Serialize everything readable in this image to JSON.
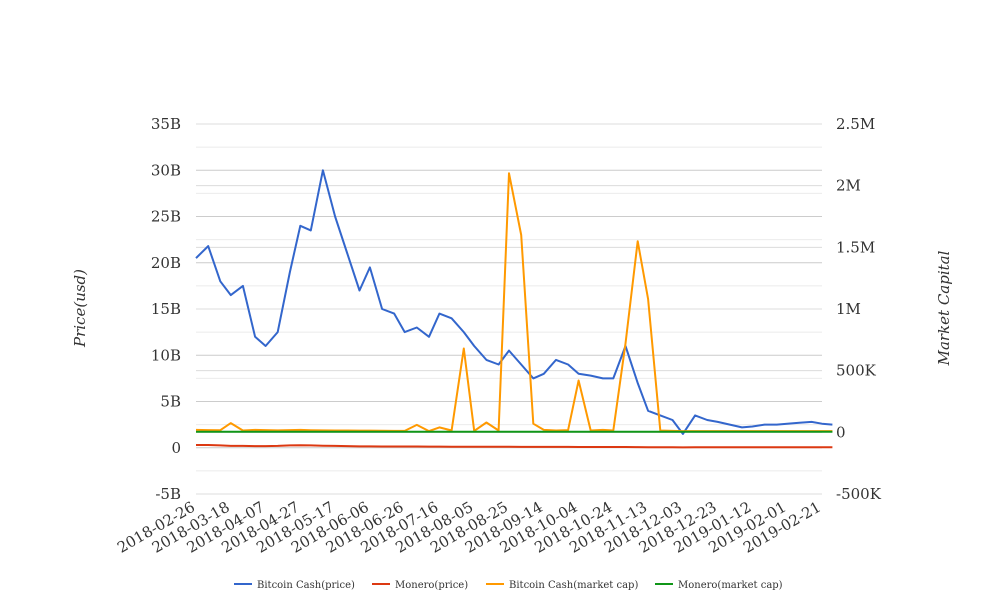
{
  "chart_data": {
    "type": "line",
    "title": "",
    "xlabel": "",
    "ylabel": "Price(usd)",
    "y2label": "Market Capital",
    "grid": true,
    "legend_position": "bottom",
    "x_tick_labels": [
      "2018-02-26",
      "2018-03-18",
      "2018-04-07",
      "2018-04-27",
      "2018-05-17",
      "2018-06-06",
      "2018-06-26",
      "2018-07-16",
      "2018-08-05",
      "2018-08-25",
      "2018-09-14",
      "2018-10-04",
      "2018-10-24",
      "2018-11-13",
      "2018-12-03",
      "2018-12-23",
      "2019-01-12",
      "2019-02-01",
      "2019-02-21"
    ],
    "y_ticks": [
      "35B",
      "30B",
      "25B",
      "20B",
      "15B",
      "10B",
      "5B",
      "0",
      "-5B"
    ],
    "y_tick_values": [
      35,
      30,
      25,
      20,
      15,
      10,
      5,
      0,
      -5
    ],
    "y_unit": "billion",
    "ylim": [
      -5,
      35
    ],
    "y2_ticks": [
      "2.5M",
      "2M",
      "1.5M",
      "1M",
      "500K",
      "0",
      "-500K"
    ],
    "y2_tick_values": [
      2500000,
      2000000,
      1500000,
      1000000,
      500000,
      0,
      -500000
    ],
    "y2lim": [
      -500000,
      2500000
    ],
    "x": [
      "2018-02-26",
      "2018-03-05",
      "2018-03-12",
      "2018-03-18",
      "2018-03-25",
      "2018-04-01",
      "2018-04-07",
      "2018-04-14",
      "2018-04-21",
      "2018-04-27",
      "2018-05-03",
      "2018-05-10",
      "2018-05-17",
      "2018-05-24",
      "2018-05-31",
      "2018-06-06",
      "2018-06-13",
      "2018-06-20",
      "2018-06-26",
      "2018-07-03",
      "2018-07-10",
      "2018-07-16",
      "2018-07-23",
      "2018-07-30",
      "2018-08-05",
      "2018-08-12",
      "2018-08-19",
      "2018-08-25",
      "2018-09-01",
      "2018-09-08",
      "2018-09-14",
      "2018-09-21",
      "2018-09-28",
      "2018-10-04",
      "2018-10-11",
      "2018-10-18",
      "2018-10-24",
      "2018-10-31",
      "2018-11-07",
      "2018-11-13",
      "2018-11-20",
      "2018-11-27",
      "2018-12-03",
      "2018-12-10",
      "2018-12-17",
      "2018-12-23",
      "2018-12-30",
      "2019-01-06",
      "2019-01-12",
      "2019-01-19",
      "2019-01-26",
      "2019-02-01",
      "2019-02-08",
      "2019-02-15",
      "2019-02-21",
      "2019-02-27"
    ],
    "series": [
      {
        "name": "Bitcoin Cash(price)",
        "axis": "left",
        "color": "#3366cc",
        "values": [
          20.5,
          21.8,
          18.0,
          16.5,
          17.5,
          12.0,
          11.0,
          12.5,
          19.0,
          24.0,
          23.5,
          30.0,
          25.0,
          21.0,
          17.0,
          19.5,
          15.0,
          14.5,
          12.5,
          13.0,
          12.0,
          14.5,
          14.0,
          12.5,
          11.0,
          9.5,
          9.0,
          10.5,
          9.0,
          7.5,
          8.0,
          9.5,
          9.0,
          8.0,
          7.8,
          7.5,
          7.5,
          11.0,
          7.0,
          4.0,
          3.5,
          3.0,
          1.5,
          3.5,
          3.0,
          2.8,
          2.5,
          2.2,
          2.3,
          2.5,
          2.5,
          2.6,
          2.7,
          2.8,
          2.6,
          2.5
        ]
      },
      {
        "name": "Monero(price)",
        "axis": "left",
        "color": "#dc3912",
        "values": [
          0.3,
          0.3,
          0.25,
          0.2,
          0.2,
          0.18,
          0.18,
          0.2,
          0.25,
          0.28,
          0.25,
          0.22,
          0.2,
          0.18,
          0.15,
          0.15,
          0.14,
          0.13,
          0.13,
          0.13,
          0.12,
          0.12,
          0.11,
          0.1,
          0.1,
          0.1,
          0.1,
          0.1,
          0.09,
          0.09,
          0.09,
          0.09,
          0.09,
          0.08,
          0.08,
          0.08,
          0.08,
          0.08,
          0.07,
          0.06,
          0.05,
          0.05,
          0.04,
          0.05,
          0.05,
          0.05,
          0.05,
          0.05,
          0.05,
          0.05,
          0.05,
          0.05,
          0.05,
          0.05,
          0.05,
          0.05
        ]
      },
      {
        "name": "Bitcoin Cash(market cap)",
        "axis": "right",
        "color": "#ff9900",
        "values": [
          20000,
          18000,
          17000,
          75000,
          15000,
          20000,
          18000,
          16000,
          18000,
          20000,
          17000,
          16000,
          15000,
          15000,
          14000,
          14000,
          13000,
          12000,
          12000,
          60000,
          10000,
          40000,
          15000,
          680000,
          12000,
          80000,
          15000,
          2100000,
          1600000,
          70000,
          20000,
          15000,
          18000,
          420000,
          15000,
          20000,
          15000,
          720000,
          1550000,
          1080000,
          15000,
          12000,
          10000,
          10000,
          10000,
          10000,
          10000,
          10000,
          10000,
          10000,
          10000,
          10000,
          10000,
          10000,
          10000,
          10000
        ]
      },
      {
        "name": "Monero(market cap)",
        "axis": "right",
        "color": "#109618",
        "values": [
          5000,
          5000,
          5000,
          5000,
          5000,
          5000,
          5000,
          5000,
          5000,
          5000,
          5000,
          5000,
          5000,
          5000,
          5000,
          5000,
          5000,
          5000,
          5000,
          5000,
          5000,
          5000,
          5000,
          5000,
          5000,
          5000,
          5000,
          5000,
          5000,
          5000,
          5000,
          5000,
          5000,
          5000,
          5000,
          5000,
          5000,
          5000,
          5000,
          5000,
          5000,
          5000,
          5000,
          5000,
          5000,
          5000,
          5000,
          5000,
          5000,
          5000,
          5000,
          5000,
          5000,
          5000,
          5000,
          5000
        ]
      }
    ]
  }
}
